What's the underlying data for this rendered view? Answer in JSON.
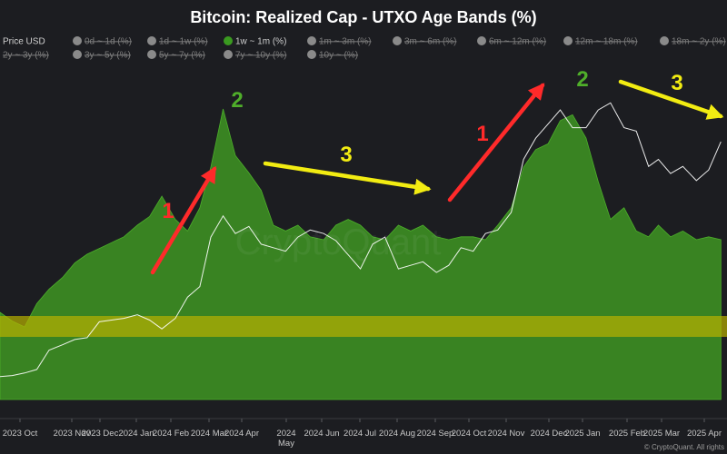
{
  "chart_data": {
    "type": "area",
    "title": "Bitcoin: Realized Cap - UTXO Age Bands (%)",
    "legend": [
      {
        "label": "Price USD",
        "active": true,
        "color": "#ffffff",
        "symbol": "line"
      },
      {
        "label": "0d ~ 1d (%)",
        "active": false,
        "color": "#8a8a8a"
      },
      {
        "label": "1d ~ 1w (%)",
        "active": false,
        "color": "#8a8a8a"
      },
      {
        "label": "1w ~ 1m (%)",
        "active": true,
        "color": "#3a9a20"
      },
      {
        "label": "1m ~ 3m (%)",
        "active": false,
        "color": "#8a8a8a"
      },
      {
        "label": "3m ~ 6m (%)",
        "active": false,
        "color": "#8a8a8a"
      },
      {
        "label": "6m ~ 12m (%)",
        "active": false,
        "color": "#8a8a8a"
      },
      {
        "label": "12m ~ 18m (%)",
        "active": false,
        "color": "#8a8a8a"
      },
      {
        "label": "18m ~ 2y (%)",
        "active": false,
        "color": "#8a8a8a"
      },
      {
        "label": "2y ~ 3y (%)",
        "active": false,
        "color": "#8a8a8a"
      },
      {
        "label": "3y ~ 5y (%)",
        "active": false,
        "color": "#8a8a8a"
      },
      {
        "label": "5y ~ 7y (%)",
        "active": false,
        "color": "#8a8a8a"
      },
      {
        "label": "7y ~ 10y (%)",
        "active": false,
        "color": "#8a8a8a"
      },
      {
        "label": "10y ~ (%)",
        "active": false,
        "color": "#8a8a8a"
      }
    ],
    "x_tick_labels": [
      "2023 Oct",
      "2023 Nov",
      "2023 Dec",
      "2024 Jan",
      "2024 Feb",
      "2024 Mar",
      "2024 Apr",
      "2024 May",
      "2024 Jun",
      "2024 Jul",
      "2024 Aug",
      "2024 Sep",
      "2024 Oct",
      "2024 Nov",
      "2024 Dec",
      "2025 Jan",
      "2025 Feb",
      "2025 Mar",
      "2025 Apr"
    ],
    "x": [
      "2023-09-15",
      "2023-09-25",
      "2023-10-05",
      "2023-10-15",
      "2023-10-25",
      "2023-11-05",
      "2023-11-15",
      "2023-11-25",
      "2023-12-05",
      "2023-12-15",
      "2023-12-25",
      "2024-01-05",
      "2024-01-15",
      "2024-01-25",
      "2024-02-05",
      "2024-02-15",
      "2024-02-25",
      "2024-03-05",
      "2024-03-15",
      "2024-03-25",
      "2024-04-05",
      "2024-04-15",
      "2024-04-25",
      "2024-05-05",
      "2024-05-15",
      "2024-05-25",
      "2024-06-05",
      "2024-06-15",
      "2024-06-25",
      "2024-07-05",
      "2024-07-15",
      "2024-07-25",
      "2024-08-05",
      "2024-08-15",
      "2024-08-25",
      "2024-09-05",
      "2024-09-15",
      "2024-09-25",
      "2024-10-05",
      "2024-10-15",
      "2024-10-25",
      "2024-11-05",
      "2024-11-15",
      "2024-11-25",
      "2024-12-05",
      "2024-12-15",
      "2024-12-25",
      "2025-01-05",
      "2025-01-15",
      "2025-01-25",
      "2025-02-05",
      "2025-02-15",
      "2025-02-25",
      "2025-03-05",
      "2025-03-15",
      "2025-03-25",
      "2025-04-05",
      "2025-04-15",
      "2025-04-25"
    ],
    "series": [
      {
        "name": "1w ~ 1m (%)",
        "color": "#3f9a22",
        "values": [
          0.3,
          0.27,
          0.25,
          0.33,
          0.38,
          0.42,
          0.47,
          0.5,
          0.52,
          0.54,
          0.56,
          0.6,
          0.63,
          0.7,
          0.62,
          0.58,
          0.66,
          0.8,
          1.0,
          0.84,
          0.78,
          0.72,
          0.6,
          0.58,
          0.6,
          0.56,
          0.55,
          0.6,
          0.62,
          0.6,
          0.56,
          0.55,
          0.6,
          0.58,
          0.6,
          0.56,
          0.55,
          0.56,
          0.56,
          0.55,
          0.6,
          0.66,
          0.8,
          0.86,
          0.88,
          0.96,
          0.98,
          0.9,
          0.75,
          0.62,
          0.66,
          0.58,
          0.56,
          0.6,
          0.56,
          0.58,
          0.55,
          0.56,
          0.55
        ]
      },
      {
        "name": "Price USD",
        "color": "#ffffff",
        "values": [
          26500,
          26800,
          27500,
          28500,
          34000,
          35500,
          37000,
          37500,
          42000,
          42500,
          43000,
          44000,
          42500,
          40000,
          43000,
          49000,
          52000,
          66000,
          72000,
          67000,
          69000,
          64000,
          63000,
          62000,
          66000,
          68000,
          67000,
          65000,
          61000,
          57000,
          64000,
          66000,
          57000,
          58000,
          59000,
          56000,
          58000,
          63000,
          62000,
          67000,
          68000,
          73000,
          88000,
          94000,
          98000,
          102000,
          97000,
          97000,
          102000,
          104000,
          97000,
          96000,
          86000,
          88000,
          84000,
          86000,
          82000,
          85000,
          93000
        ]
      }
    ],
    "highlight_band": {
      "color": "#b8b000"
    },
    "annotations": [
      {
        "text": "1",
        "color": "#ff2a2a"
      },
      {
        "text": "2",
        "color": "#4fae2a"
      },
      {
        "text": "3",
        "color": "#f2ec12"
      },
      {
        "text": "1",
        "color": "#ff2a2a"
      },
      {
        "text": "2",
        "color": "#4fae2a"
      },
      {
        "text": "3",
        "color": "#f2ec12"
      }
    ],
    "watermark": "CryptoQuant",
    "credit": "© CryptoQuant. All rights"
  }
}
